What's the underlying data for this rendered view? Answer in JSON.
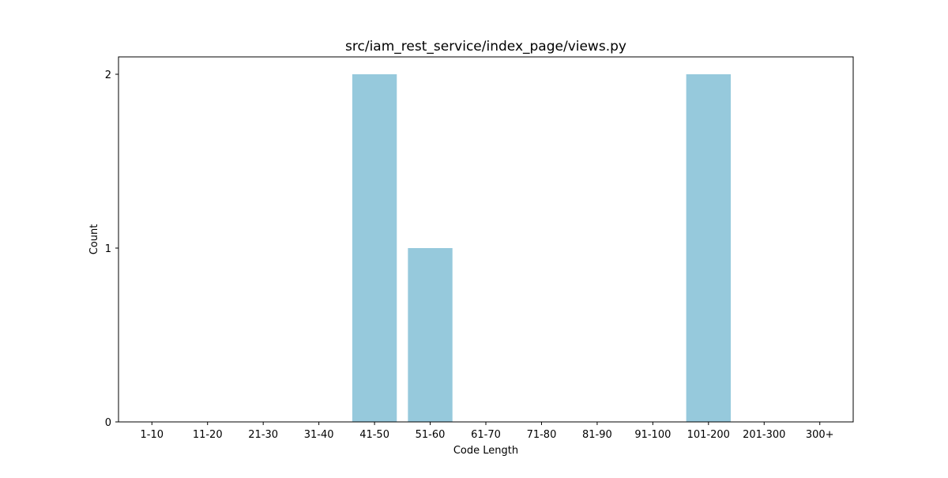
{
  "chart_data": {
    "type": "bar",
    "title": "src/iam_rest_service/index_page/views.py",
    "xlabel": "Code Length",
    "ylabel": "Count",
    "categories": [
      "1-10",
      "11-20",
      "21-30",
      "31-40",
      "41-50",
      "51-60",
      "61-70",
      "71-80",
      "81-90",
      "91-100",
      "101-200",
      "201-300",
      "300+"
    ],
    "values": [
      0,
      0,
      0,
      0,
      2,
      1,
      0,
      0,
      0,
      0,
      2,
      0,
      0
    ],
    "ylim": [
      0,
      2.1
    ],
    "yticks": [
      0,
      1,
      2
    ],
    "grid": false,
    "bar_color": "#96c9dc"
  }
}
